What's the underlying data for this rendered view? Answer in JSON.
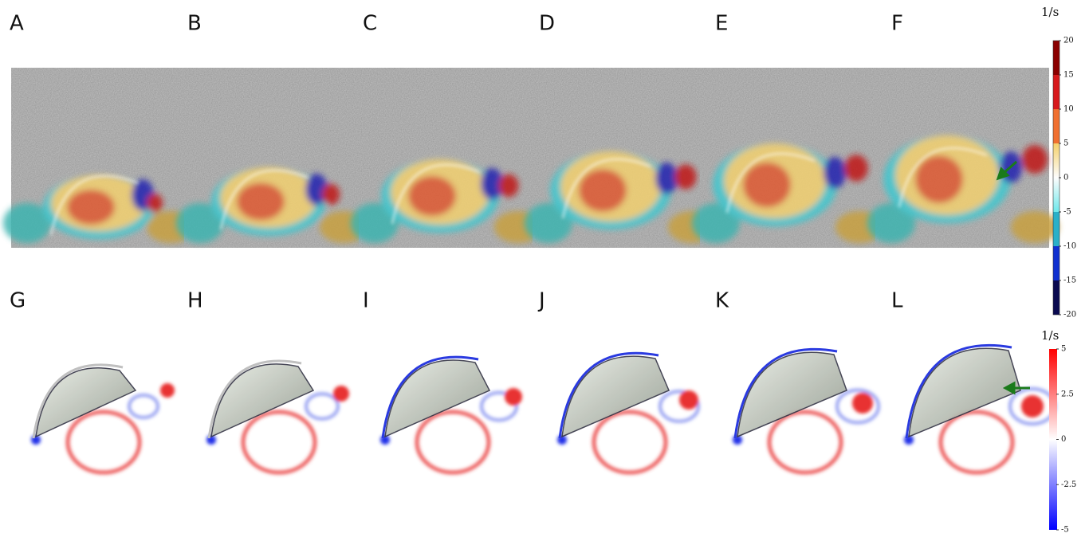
{
  "panels": {
    "top": [
      "A",
      "B",
      "C",
      "D",
      "E",
      "F"
    ],
    "bottom": [
      "G",
      "H",
      "I",
      "J",
      "K",
      "L"
    ]
  },
  "colorbars": [
    {
      "unit": "1/s",
      "ticks": [
        20,
        15,
        10,
        5,
        0,
        -5,
        -10,
        -15,
        -20
      ]
    },
    {
      "unit": "1/s",
      "ticks": [
        5,
        2.5,
        0,
        -2.5,
        -5
      ]
    }
  ]
}
